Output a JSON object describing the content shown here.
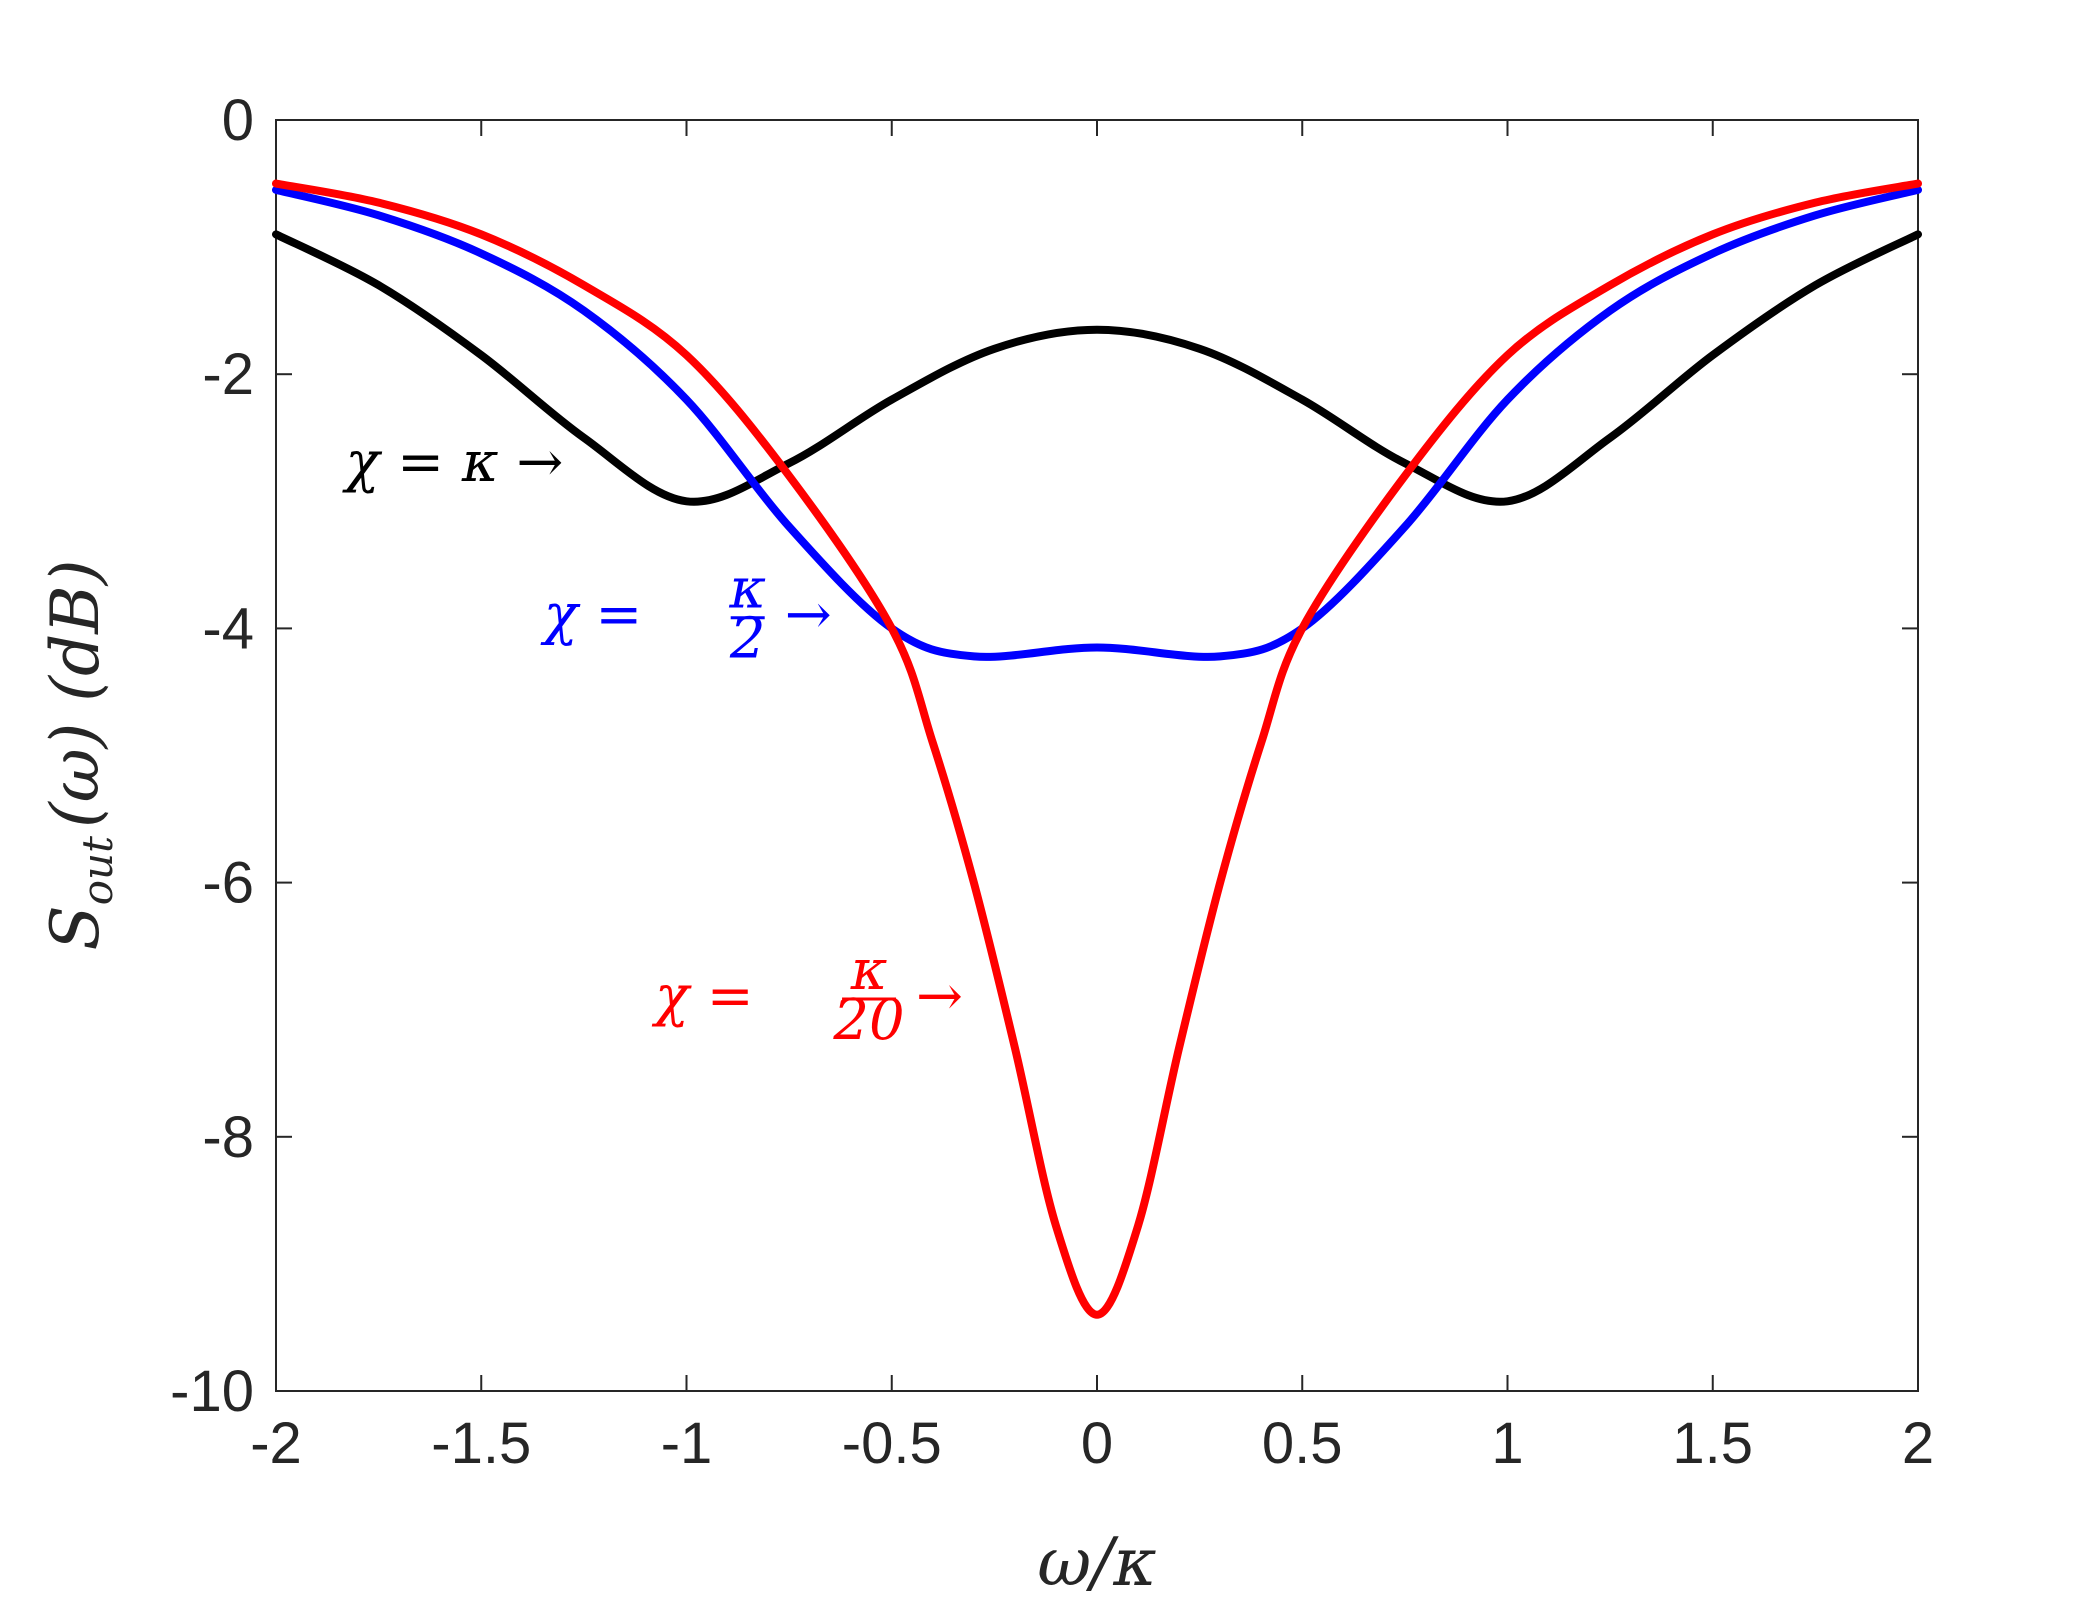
{
  "chart_data": {
    "type": "line",
    "xlabel": "ω/κ",
    "ylabel_main": "S",
    "ylabel_sub": "out",
    "ylabel_rest": "(ω)  (dB)",
    "xlim": [
      -2,
      2
    ],
    "ylim": [
      -10,
      0
    ],
    "xticks": [
      -2,
      -1.5,
      -1,
      -0.5,
      0,
      0.5,
      1,
      1.5,
      2
    ],
    "xtick_labels": [
      "-2",
      "-1.5",
      "-1",
      "-0.5",
      "0",
      "0.5",
      "1",
      "1.5",
      "2"
    ],
    "yticks": [
      0,
      -2,
      -4,
      -6,
      -8,
      -10
    ],
    "ytick_labels": [
      "0",
      "-2",
      "-4",
      "-6",
      "-8",
      "-10"
    ],
    "grid": false,
    "series": [
      {
        "color": "#000000",
        "x": [
          -2,
          -1.75,
          -1.5,
          -1.25,
          -1.0,
          -0.75,
          -0.5,
          -0.25,
          0,
          0.25,
          0.5,
          0.75,
          1.0,
          1.25,
          1.5,
          1.75,
          2
        ],
        "y": [
          -0.9,
          -1.3,
          -1.85,
          -2.5,
          -3.0,
          -2.7,
          -2.2,
          -1.8,
          -1.65,
          -1.8,
          -2.2,
          -2.7,
          -3.0,
          -2.5,
          -1.85,
          -1.3,
          -0.9
        ],
        "annotation": {
          "text": "χ = κ →",
          "x": -1.3,
          "y": -2.7
        }
      },
      {
        "color": "#0000ff",
        "x": [
          -2,
          -1.75,
          -1.5,
          -1.25,
          -1.0,
          -0.75,
          -0.5,
          -0.3,
          0,
          0.3,
          0.5,
          0.75,
          1.0,
          1.25,
          1.5,
          1.75,
          2
        ],
        "y": [
          -0.55,
          -0.75,
          -1.05,
          -1.5,
          -2.2,
          -3.2,
          -4.0,
          -4.22,
          -4.15,
          -4.22,
          -4.0,
          -3.2,
          -2.2,
          -1.5,
          -1.05,
          -0.75,
          -0.55
        ],
        "annotation": {
          "text_prefix": "χ =",
          "frac_num": "κ",
          "frac_den": "2",
          "arrow": "→",
          "x": -0.6,
          "y": -3.9
        }
      },
      {
        "color": "#ff0000",
        "x": [
          -2,
          -1.75,
          -1.5,
          -1.25,
          -1.0,
          -0.75,
          -0.5,
          -0.4,
          -0.3,
          -0.2,
          -0.1,
          0,
          0.1,
          0.2,
          0.3,
          0.4,
          0.5,
          0.75,
          1.0,
          1.25,
          1.5,
          1.75,
          2
        ],
        "y": [
          -0.5,
          -0.65,
          -0.9,
          -1.3,
          -1.85,
          -2.8,
          -4.0,
          -4.9,
          -6.0,
          -7.3,
          -8.7,
          -9.4,
          -8.7,
          -7.3,
          -6.0,
          -4.9,
          -4.0,
          -2.8,
          -1.85,
          -1.3,
          -0.9,
          -0.65,
          -0.5
        ],
        "annotation": {
          "text_prefix": "χ =",
          "frac_num": "κ",
          "frac_den": "20",
          "arrow": "→",
          "x": -0.28,
          "y": -6.9
        }
      }
    ]
  }
}
